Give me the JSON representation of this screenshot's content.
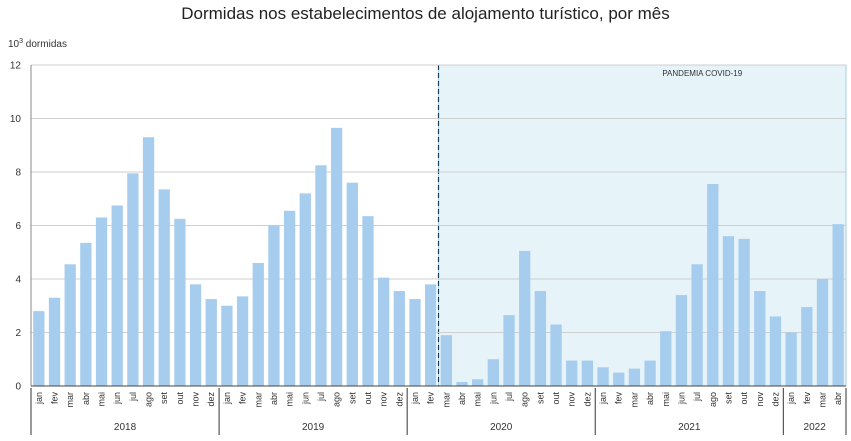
{
  "chart_data": {
    "type": "bar",
    "title": "Dormidas nos estabelecimentos de alojamento turístico, por mês",
    "ylabel_base": "10",
    "ylabel_exp": "3",
    "ylabel_text": " dormidas",
    "ylim": [
      0,
      12
    ],
    "yticks": [
      0,
      2,
      4,
      6,
      8,
      10,
      12
    ],
    "grid": true,
    "colors": {
      "bar": "#a6cdee",
      "shade": "#e6f3f8",
      "shade_border": "#a9cfdc",
      "grid": "#cfcfcf",
      "divider": "#1f3b57"
    },
    "annotation": {
      "text": "PANDEMIA COVID-19",
      "start_category_index": 26
    },
    "categories": [
      "jan",
      "fev",
      "mar",
      "abr",
      "mai",
      "jun",
      "jul",
      "ago",
      "set",
      "out",
      "nov",
      "dez",
      "jan",
      "fev",
      "mar",
      "abr",
      "mai",
      "jun",
      "jul",
      "ago",
      "set",
      "out",
      "nov",
      "dez",
      "jan",
      "fev",
      "mar",
      "abr",
      "mai",
      "jun",
      "jul",
      "ago",
      "set",
      "out",
      "nov",
      "dez",
      "jan",
      "fev",
      "mar",
      "abr",
      "mai",
      "jun",
      "jul",
      "ago",
      "set",
      "out",
      "nov",
      "dez",
      "jan",
      "fev",
      "mar",
      "abr"
    ],
    "values": [
      2.8,
      3.3,
      4.55,
      5.35,
      6.3,
      6.75,
      7.95,
      9.3,
      7.35,
      6.25,
      3.8,
      3.25,
      3.0,
      3.35,
      4.6,
      6.0,
      6.55,
      7.2,
      8.25,
      9.65,
      7.6,
      6.35,
      4.05,
      3.55,
      3.25,
      3.8,
      1.9,
      0.15,
      0.25,
      1.0,
      2.65,
      5.05,
      3.55,
      2.3,
      0.95,
      0.95,
      0.7,
      0.5,
      0.65,
      0.95,
      2.05,
      3.4,
      4.55,
      7.55,
      5.6,
      5.5,
      3.55,
      2.6,
      2.0,
      2.95,
      4.0,
      6.05
    ],
    "years": [
      {
        "label": "2018",
        "start": 0,
        "count": 12
      },
      {
        "label": "2019",
        "start": 12,
        "count": 12
      },
      {
        "label": "2020",
        "start": 24,
        "count": 12
      },
      {
        "label": "2021",
        "start": 36,
        "count": 12
      },
      {
        "label": "2022",
        "start": 48,
        "count": 4
      }
    ]
  }
}
